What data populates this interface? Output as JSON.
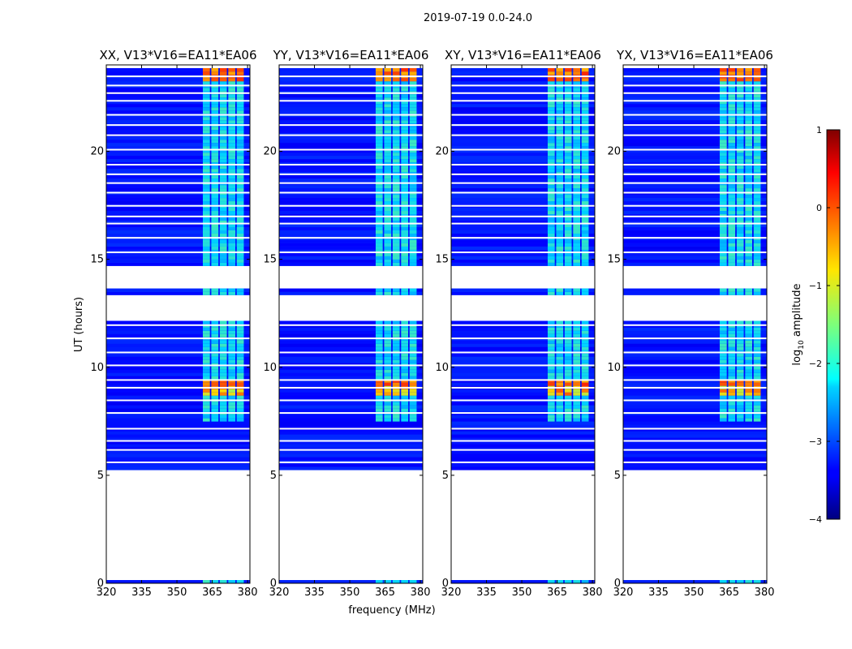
{
  "suptitle": "2019-07-19 0.0-24.0",
  "chart_data": {
    "type": "heatmap",
    "title": "2019-07-19 0.0-24.0",
    "xlabel": "frequency (MHz)",
    "ylabel": "UT (hours)",
    "xlim": [
      320,
      381
    ],
    "ylim": [
      0,
      24
    ],
    "x_ticks": [
      320,
      335,
      350,
      365,
      380
    ],
    "y_ticks": [
      0,
      5,
      10,
      15,
      20
    ],
    "x_tick_labels": [
      "320",
      "335",
      "350",
      "365",
      "380"
    ],
    "y_tick_labels": [
      "0",
      "5",
      "10",
      "15",
      "20"
    ],
    "panels": [
      {
        "title": "XX, V13*V16=EA11*EA06"
      },
      {
        "title": "YY, V13*V16=EA11*EA06"
      },
      {
        "title": "XY, V13*V16=EA11*EA06"
      },
      {
        "title": "YX, V13*V16=EA11*EA06"
      }
    ],
    "colorbar": {
      "label": "log10 amplitude",
      "label_main": "log",
      "label_sub": "10",
      "label_rest": " amplitude",
      "range": [
        -4,
        1
      ],
      "ticks": [
        1,
        0,
        -1,
        -2,
        -3,
        -4
      ],
      "tick_labels": [
        "1",
        "0",
        "−1",
        "−2",
        "−3",
        "−4"
      ]
    },
    "data_coverage_ut": [
      [
        0.05,
        0.2
      ],
      [
        5.3,
        23.85
      ]
    ],
    "flagged_ut_gaps": [
      [
        12.2,
        13.3
      ],
      [
        13.6,
        14.7
      ]
    ],
    "rfi_band_mhz": [
      361,
      379
    ],
    "strong_rfi_ut": [
      [
        8.7,
        9.4
      ],
      [
        23.3,
        23.8
      ]
    ]
  }
}
